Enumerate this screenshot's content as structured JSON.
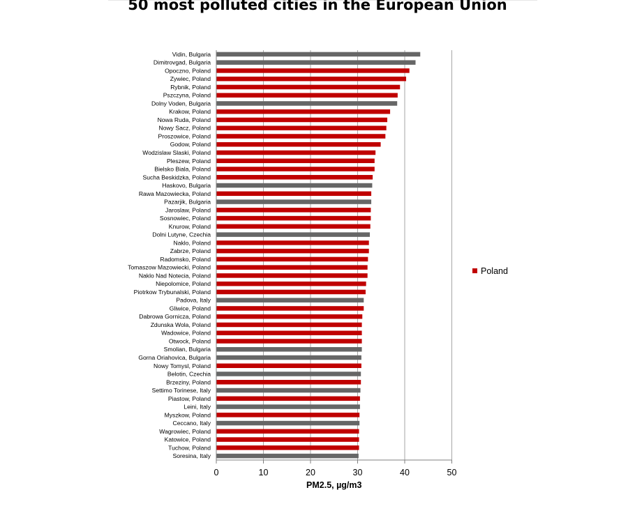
{
  "chart_data": {
    "type": "bar",
    "orientation": "horizontal",
    "title": "50 most polluted cities in the European Union",
    "xlabel": "PM2.5, µg/m3",
    "ylabel": "",
    "xlim": [
      0,
      50
    ],
    "xticks": [
      0,
      10,
      20,
      30,
      40,
      50
    ],
    "grid": true,
    "legend_position": "right",
    "legend": [
      {
        "label": "Poland",
        "color": "#c00000"
      }
    ],
    "colors": {
      "Poland": "#c00000",
      "Other": "#666666"
    },
    "categories": [
      "Vidin, Bulgaria",
      "Dimitrovgad, Bulgaria",
      "Opoczno, Poland",
      "Zywiec, Poland",
      "Rybnik, Poland",
      "Pszczyna, Poland",
      "Dolny Voden, Bulgaria",
      "Krakow, Poland",
      "Nowa Ruda, Poland",
      "Nowy Sacz, Poland",
      "Proszowice, Poland",
      "Godow, Poland",
      "Wodzislaw Slaski, Poland",
      "Pleszew, Poland",
      "Bielsko Biala, Poland",
      "Sucha Beskidzka, Poland",
      "Haskovo, Bulgaria",
      "Rawa Mazowiecka, Poland",
      "Pazarjik, Bulgaria",
      "Jaroslaw, Poland",
      "Sosnowiec, Poland",
      "Knurow, Poland",
      "Dolni Lutyne, Czechia",
      "Naklo, Poland",
      "Zabrze, Poland",
      "Radomsko, Poland",
      "Tomaszow Mazowiecki, Poland",
      "Naklo Nad Notecia, Poland",
      "Niepolomice, Poland",
      "Piotrkow Trybunalski, Poland",
      "Padova, Italy",
      "Gliwice, Poland",
      "Dabrowa Gornicza, Poland",
      "Zdunska Wola, Poland",
      "Wadowice, Poland",
      "Otwock, Poland",
      "Smolian, Bulgaria",
      "Gorna Oriahovica, Bulgaria",
      "Nowy Tomysl, Poland",
      "Belotin, Czechia",
      "Brzeziny, Poland",
      "Settimo Torinese, Italy",
      "Piastow, Poland",
      "Leini, Italy",
      "Myszkow, Poland",
      "Ceccano, Italy",
      "Wagrowiec, Poland",
      "Katowice, Poland",
      "Tuchow, Poland",
      "Soresina, Italy"
    ],
    "values": [
      43.3,
      42.3,
      41.0,
      40.3,
      39.0,
      38.5,
      38.4,
      36.9,
      36.3,
      36.1,
      35.9,
      34.9,
      33.8,
      33.6,
      33.6,
      33.2,
      33.1,
      32.9,
      32.9,
      32.8,
      32.8,
      32.7,
      32.6,
      32.4,
      32.4,
      32.2,
      32.1,
      32.1,
      31.8,
      31.7,
      31.3,
      31.3,
      31.0,
      30.9,
      30.9,
      30.9,
      30.9,
      30.8,
      30.8,
      30.7,
      30.7,
      30.6,
      30.5,
      30.5,
      30.4,
      30.4,
      30.3,
      30.3,
      30.3,
      30.2
    ],
    "series_color": [
      "Other",
      "Other",
      "Poland",
      "Poland",
      "Poland",
      "Poland",
      "Other",
      "Poland",
      "Poland",
      "Poland",
      "Poland",
      "Poland",
      "Poland",
      "Poland",
      "Poland",
      "Poland",
      "Other",
      "Poland",
      "Other",
      "Poland",
      "Poland",
      "Poland",
      "Other",
      "Poland",
      "Poland",
      "Poland",
      "Poland",
      "Poland",
      "Poland",
      "Poland",
      "Other",
      "Poland",
      "Poland",
      "Poland",
      "Poland",
      "Poland",
      "Other",
      "Other",
      "Poland",
      "Other",
      "Poland",
      "Other",
      "Poland",
      "Other",
      "Poland",
      "Other",
      "Poland",
      "Poland",
      "Poland",
      "Other"
    ]
  }
}
